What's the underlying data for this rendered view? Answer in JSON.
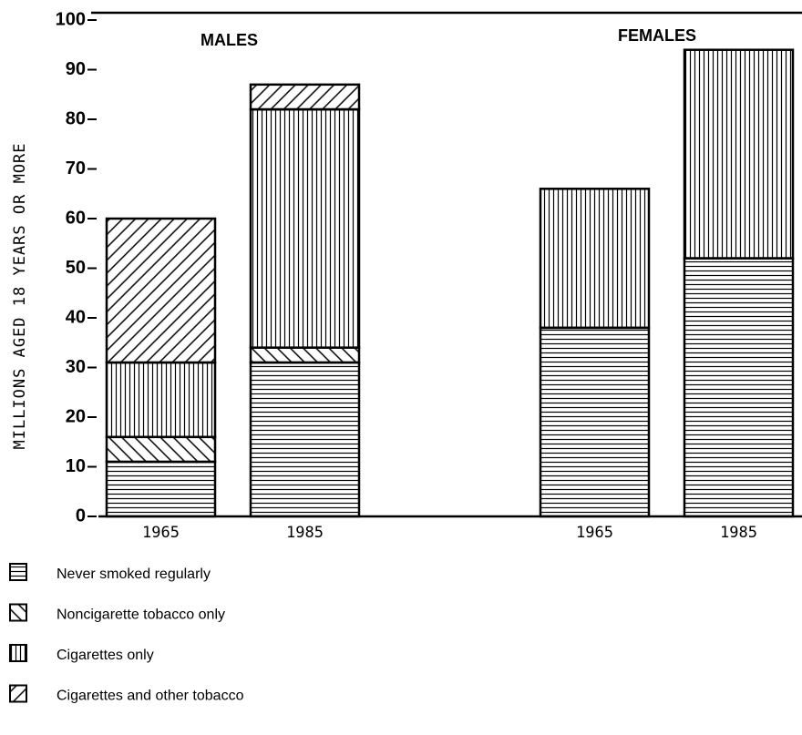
{
  "chart_data": {
    "type": "stacked-bar",
    "ylabel": "MILLIONS AGED 18 YEARS OR MORE",
    "group_labels": [
      "MALES",
      "FEMALES"
    ],
    "categories": [
      "1965",
      "1985",
      "1965",
      "1985"
    ],
    "series": [
      {
        "name": "Never smoked regularly",
        "color": "#000000",
        "pattern": "horizontal",
        "values": [
          11,
          31,
          38,
          52
        ]
      },
      {
        "name": "Noncigarette tobacco only",
        "color": "#000000",
        "pattern": "backslash",
        "values": [
          5,
          3,
          0,
          0
        ]
      },
      {
        "name": "Cigarettes only",
        "color": "#000000",
        "pattern": "vertical",
        "values": [
          15,
          48,
          28,
          42
        ]
      },
      {
        "name": "Cigarettes and other tobacco",
        "color": "#000000",
        "pattern": "slash",
        "values": [
          29,
          5,
          0,
          0
        ]
      }
    ],
    "ylim": [
      0,
      100
    ],
    "yticks": [
      0,
      10,
      20,
      30,
      40,
      50,
      60,
      70,
      80,
      90,
      100
    ]
  }
}
